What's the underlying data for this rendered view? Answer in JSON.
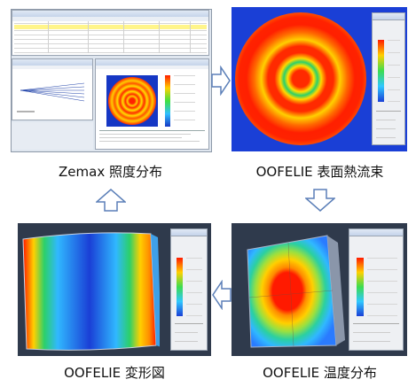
{
  "captions": {
    "top_left": "Zemax 照度分布",
    "top_right": "OOFELIE 表面熱流束",
    "bottom_right": "OOFELIE 温度分布",
    "bottom_left": "OOFELIE 変形図"
  },
  "colors": {
    "arrow_stroke": "#5b7fb8",
    "arrow_fill": "#ffffff",
    "fem_background": "#2f3a4c",
    "heatmap_dark": "#1a3fd6",
    "heatmap_hot": "#ff2a00"
  },
  "icons": {
    "flow_arrow": "outline-block-arrow"
  }
}
